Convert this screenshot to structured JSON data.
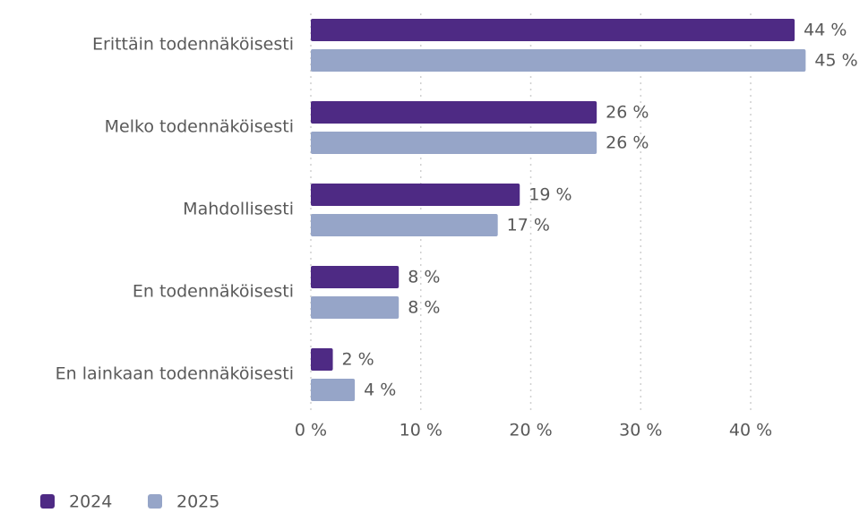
{
  "chart_data": {
    "type": "barh",
    "categories": [
      "Erittäin todennäköisesti",
      "Melko todennäköisesti",
      "Mahdollisesti",
      "En todennäköisesti",
      "En lainkaan todennäköisesti"
    ],
    "series": [
      {
        "name": "2024",
        "color": "#4e2a84",
        "values": [
          44,
          26,
          19,
          8,
          2
        ],
        "value_labels": [
          "44 %",
          "26 %",
          "19 %",
          "8 %",
          "2 %"
        ]
      },
      {
        "name": "2025",
        "color": "#96a5c8",
        "values": [
          45,
          26,
          17,
          8,
          4
        ],
        "value_labels": [
          "45 %",
          "26 %",
          "17 %",
          "8 %",
          "4 %"
        ]
      }
    ],
    "xlim": [
      0,
      45
    ],
    "xticks": [
      {
        "value": 0,
        "label": "0 %"
      },
      {
        "value": 10,
        "label": "10 %"
      },
      {
        "value": 20,
        "label": "20 %"
      },
      {
        "value": 30,
        "label": "30 %"
      },
      {
        "value": 40,
        "label": "40 %"
      }
    ],
    "grid": true,
    "legend": "bottom-left"
  }
}
